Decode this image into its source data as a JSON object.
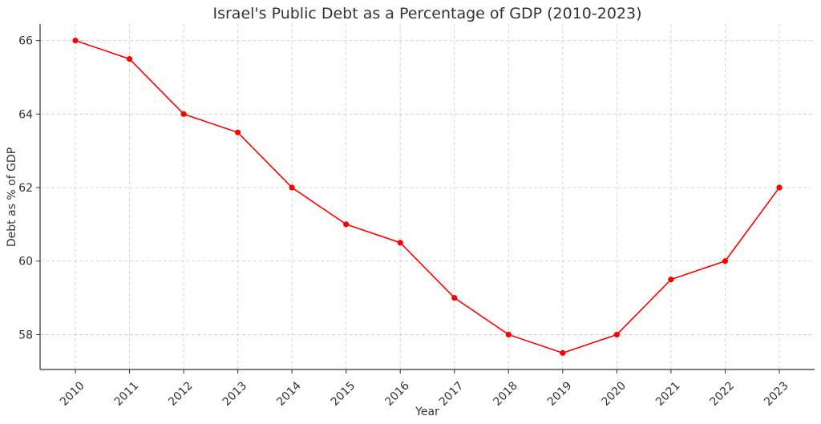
{
  "chart_data": {
    "type": "line",
    "title": "Israel's Public Debt as a Percentage of GDP (2010-2023)",
    "xlabel": "Year",
    "ylabel": "Debt as % of GDP",
    "x": [
      "2010",
      "2011",
      "2012",
      "2013",
      "2014",
      "2015",
      "2016",
      "2017",
      "2018",
      "2019",
      "2020",
      "2021",
      "2022",
      "2023"
    ],
    "series": [
      {
        "values": [
          66,
          65.5,
          64,
          63.5,
          62,
          61,
          60.5,
          59,
          58,
          57.5,
          58,
          59.5,
          60,
          62
        ],
        "color": "#ff0000"
      }
    ],
    "ylim": [
      57.05,
      66.45
    ],
    "yticks": [
      58,
      60,
      62,
      64,
      66
    ],
    "grid": true,
    "marker": "circle"
  }
}
